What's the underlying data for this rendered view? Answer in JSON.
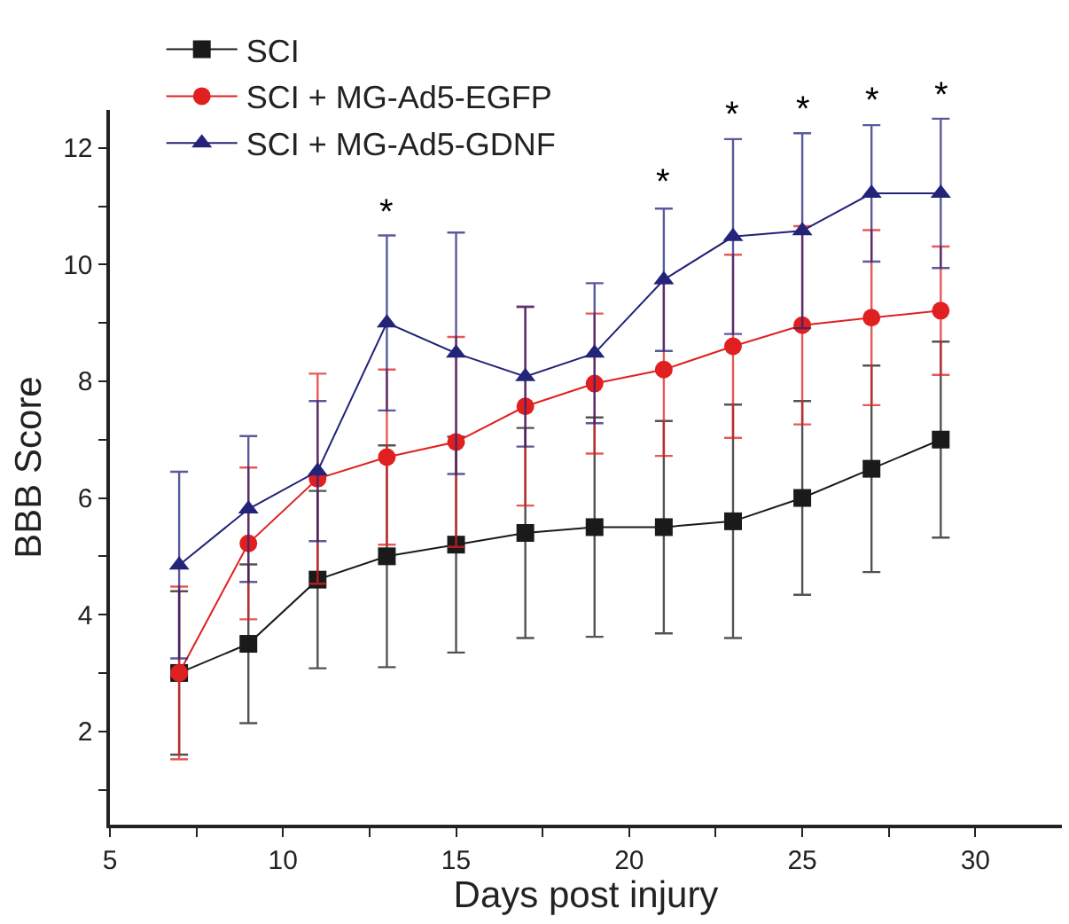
{
  "chart_data": {
    "type": "line",
    "xlabel": "Days post injury",
    "ylabel": "BBB Score",
    "x": [
      7,
      9,
      11,
      13,
      15,
      17,
      19,
      21,
      23,
      25,
      27,
      29
    ],
    "series": [
      {
        "name": "SCI",
        "color": "#1a1a1a",
        "marker": "square",
        "values": [
          3.0,
          3.5,
          4.6,
          5.0,
          5.2,
          5.4,
          5.5,
          5.5,
          5.6,
          6.0,
          6.5,
          7.0
        ],
        "errors": [
          1.4,
          1.36,
          1.52,
          1.9,
          1.85,
          1.8,
          1.88,
          1.82,
          2.0,
          1.66,
          1.77,
          1.68
        ]
      },
      {
        "name": "SCI + MG-Ad5-EGFP",
        "color": "#e02020",
        "marker": "circle",
        "values": [
          3.0,
          5.22,
          6.33,
          6.7,
          6.96,
          7.57,
          7.96,
          8.2,
          8.6,
          8.96,
          9.09,
          9.21
        ],
        "errors": [
          1.48,
          1.3,
          1.8,
          1.5,
          1.8,
          1.7,
          1.2,
          1.48,
          1.57,
          1.7,
          1.5,
          1.1
        ]
      },
      {
        "name": "SCI + MG-Ad5-GDNF",
        "color": "#23237a",
        "marker": "triangle",
        "values": [
          4.85,
          5.81,
          6.46,
          9.0,
          8.48,
          8.08,
          8.48,
          9.74,
          10.48,
          10.58,
          11.22,
          11.22
        ],
        "errors": [
          1.6,
          1.25,
          1.2,
          1.5,
          2.07,
          1.2,
          1.2,
          1.22,
          1.67,
          1.67,
          1.17,
          1.28
        ]
      }
    ],
    "annotations": [
      {
        "text": "*",
        "x": 13,
        "y": 10.5
      },
      {
        "text": "*",
        "x": 21,
        "y": 11.0
      },
      {
        "text": "*",
        "x": 23,
        "y": 12.15
      },
      {
        "text": "*",
        "x": 25,
        "y": 12.25
      },
      {
        "text": "*",
        "x": 27,
        "y": 12.4
      },
      {
        "text": "*",
        "x": 29,
        "y": 12.5
      }
    ],
    "xlim": [
      5,
      32.5
    ],
    "xticks": [
      5,
      {
        "value": 7.5,
        "label": null
      },
      10,
      {
        "value": 12.5,
        "label": null
      },
      15,
      {
        "value": 17.5,
        "label": null
      },
      20,
      {
        "value": 22.5,
        "label": null
      },
      25,
      {
        "value": 27.5,
        "label": null
      },
      30
    ],
    "ylim": [
      0.4,
      12.65
    ],
    "yticks": [
      {
        "value": 1,
        "label": null
      },
      2,
      {
        "value": 3,
        "label": null
      },
      4,
      {
        "value": 5,
        "label": null
      },
      6,
      {
        "value": 7,
        "label": null
      },
      8,
      {
        "value": 9,
        "label": null
      },
      10,
      {
        "value": 11,
        "label": null
      },
      12
    ],
    "legend": "top left",
    "line_style": "solid"
  }
}
